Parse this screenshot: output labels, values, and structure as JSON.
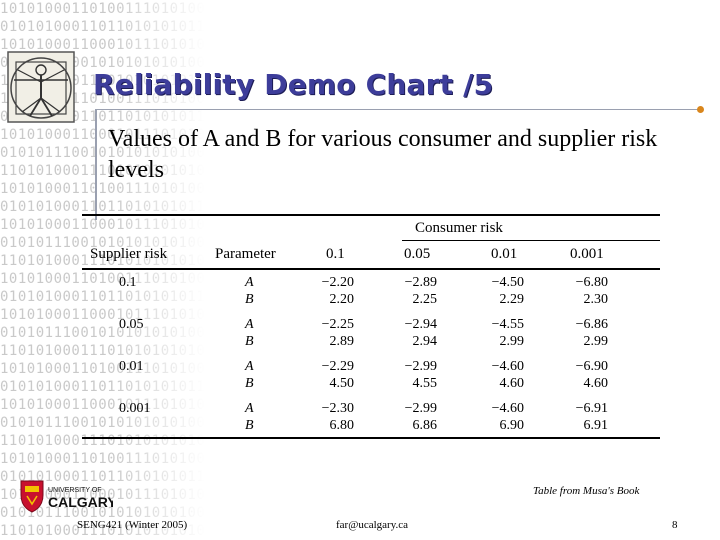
{
  "title": "Reliability Demo Chart  /5",
  "subtitle": "Values of A and B for various consumer and supplier risk levels",
  "table": {
    "group_header": "Consumer risk",
    "row_header": "Supplier risk",
    "param_header": "Parameter",
    "consumer_levels": [
      "0.1",
      "0.05",
      "0.01",
      "0.001"
    ],
    "rows": [
      {
        "supplier": "0.1",
        "params": [
          "A",
          "B"
        ],
        "A": [
          "−2.20",
          "−2.89",
          "−4.50",
          "−6.80"
        ],
        "B": [
          "2.20",
          "2.25",
          "2.29",
          "2.30"
        ]
      },
      {
        "supplier": "0.05",
        "params": [
          "A",
          "B"
        ],
        "A": [
          "−2.25",
          "−2.94",
          "−4.55",
          "−6.86"
        ],
        "B": [
          "2.89",
          "2.94",
          "2.99",
          "2.99"
        ]
      },
      {
        "supplier": "0.01",
        "params": [
          "A",
          "B"
        ],
        "A": [
          "−2.29",
          "−2.99",
          "−4.60",
          "−6.90"
        ],
        "B": [
          "4.50",
          "4.55",
          "4.60",
          "4.60"
        ]
      },
      {
        "supplier": "0.001",
        "params": [
          "A",
          "B"
        ],
        "A": [
          "−2.30",
          "−2.99",
          "−4.60",
          "−6.91"
        ],
        "B": [
          "6.80",
          "6.86",
          "6.90",
          "6.91"
        ]
      }
    ]
  },
  "caption": "Table from Musa's Book",
  "footer": {
    "left": "SENG421 (Winter 2005)",
    "center": "far@ucalgary.ca",
    "page": "8"
  },
  "logo": {
    "university_line1": "UNIVERSITY OF",
    "university_line2": "CALGARY"
  },
  "colors": {
    "title": "#3d3d9a",
    "accent_dot": "#d9861c",
    "background_digits": "#c9c9c9"
  }
}
